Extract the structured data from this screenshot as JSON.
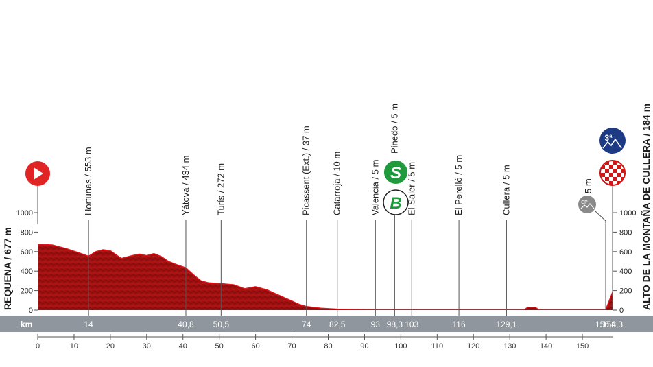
{
  "chart_data": {
    "type": "area",
    "xlabel": "km",
    "xlim": [
      0,
      158.3
    ],
    "ylim": [
      0,
      1000
    ],
    "y_ticks": [
      "0",
      "200",
      "400",
      "600",
      "800",
      "1000"
    ],
    "x_ticks": [
      "0",
      "10",
      "20",
      "30",
      "40",
      "50",
      "60",
      "70",
      "80",
      "90",
      "100",
      "110",
      "120",
      "130",
      "140",
      "150"
    ],
    "start_label": "REQUENA / 677 m",
    "finish_label": "ALTO DE LA MONTAÑA DE CULLERA / 184 m",
    "profile": {
      "x": [
        0,
        4,
        8,
        12,
        14,
        16,
        18,
        20,
        23,
        26,
        28,
        30,
        32,
        34,
        36,
        38,
        40.8,
        43,
        45,
        47,
        50.5,
        54,
        57,
        60,
        63,
        66,
        69,
        72,
        74,
        78,
        82.5,
        88,
        93,
        98.3,
        103,
        110,
        116,
        122,
        129.1,
        134,
        135,
        137,
        138,
        145,
        150,
        155,
        156.4,
        157,
        158.3
      ],
      "y": [
        677,
        670,
        630,
        580,
        553,
        600,
        620,
        610,
        530,
        560,
        575,
        560,
        580,
        550,
        500,
        470,
        434,
        360,
        300,
        280,
        272,
        260,
        220,
        240,
        210,
        160,
        110,
        60,
        37,
        20,
        10,
        8,
        5,
        5,
        5,
        5,
        5,
        5,
        5,
        5,
        30,
        30,
        5,
        5,
        5,
        5,
        5,
        60,
        184
      ]
    },
    "waypoints": [
      {
        "name": "Hortunas / 553 m",
        "km": 14,
        "km_label": "14"
      },
      {
        "name": "Yátova / 434 m",
        "km": 40.8,
        "km_label": "40,8"
      },
      {
        "name": "Turís / 272 m",
        "km": 50.5,
        "km_label": "50,5"
      },
      {
        "name": "Picassent (Ext.) / 37 m",
        "km": 74,
        "km_label": "74"
      },
      {
        "name": "Catarroja / 10 m",
        "km": 82.5,
        "km_label": "82,5"
      },
      {
        "name": "Valencia / 5 m",
        "km": 93,
        "km_label": "93"
      },
      {
        "name": "Pinedo / 5 m",
        "km": 98.3,
        "km_label": "98,3"
      },
      {
        "name": "El Saler / 5 m",
        "km": 103,
        "km_label": "103"
      },
      {
        "name": "El Perelló / 5 m",
        "km": 116,
        "km_label": "116"
      },
      {
        "name": "Cullera / 5 m",
        "km": 129.1,
        "km_label": "129,1"
      },
      {
        "name": "5 m",
        "km": 156.4,
        "km_label": "156,4"
      },
      {
        "name": "",
        "km": 158.3,
        "km_label": "158,3"
      }
    ],
    "icons": {
      "start": "start-play-icon",
      "sprint": "S",
      "bonus": "B",
      "cp": "CP",
      "climb_category": "3ª",
      "finish": "finish-checkered-icon"
    },
    "colors": {
      "profile_fill": "#a11111",
      "profile_highlight": "#e8141b",
      "km_bar": "#8f969d",
      "sprint_green": "#1f9a3d",
      "climb_blue": "#1d3b84",
      "start_red": "#e02424"
    }
  }
}
